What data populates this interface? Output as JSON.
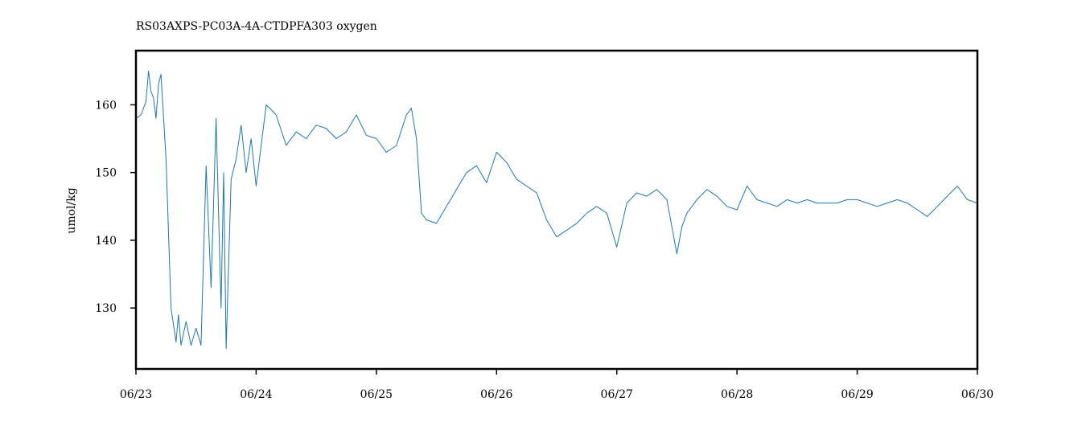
{
  "chart_data": {
    "type": "line",
    "title": "RS03AXPS-PC03A-4A-CTDPFA303 oxygen",
    "xlabel": "",
    "ylabel": "umol/kg",
    "xlim": [
      "06/23",
      "06/30"
    ],
    "ylim": [
      121,
      168
    ],
    "x_ticks": [
      "06/23",
      "06/24",
      "06/25",
      "06/26",
      "06/27",
      "06/28",
      "06/29",
      "06/30"
    ],
    "y_ticks": [
      130,
      140,
      150,
      160
    ],
    "grid": false,
    "series_color": "#1f77b4",
    "series": [
      {
        "x": [
          "06/23 00:00",
          "06/23 01:00",
          "06/23 02:00",
          "06/23 02:30",
          "06/23 03:00",
          "06/23 03:30",
          "06/23 04:00",
          "06/23 04:30",
          "06/23 05:00",
          "06/23 06:00",
          "06/23 07:00",
          "06/23 08:00",
          "06/23 08:30",
          "06/23 09:00",
          "06/23 10:00",
          "06/23 11:00",
          "06/23 12:00",
          "06/23 13:00",
          "06/23 14:00",
          "06/23 15:00",
          "06/23 16:00",
          "06/23 17:00",
          "06/23 17:30",
          "06/23 18:00",
          "06/23 19:00",
          "06/23 20:00",
          "06/23 21:00",
          "06/23 22:00",
          "06/23 23:00",
          "06/24 00:00",
          "06/24 02:00",
          "06/24 04:00",
          "06/24 06:00",
          "06/24 08:00",
          "06/24 10:00",
          "06/24 12:00",
          "06/24 14:00",
          "06/24 16:00",
          "06/24 18:00",
          "06/24 20:00",
          "06/24 22:00",
          "06/25 00:00",
          "06/25 02:00",
          "06/25 04:00",
          "06/25 06:00",
          "06/25 07:00",
          "06/25 08:00",
          "06/25 09:00",
          "06/25 10:00",
          "06/25 12:00",
          "06/25 14:00",
          "06/25 16:00",
          "06/25 18:00",
          "06/25 20:00",
          "06/25 22:00",
          "06/26 00:00",
          "06/26 02:00",
          "06/26 04:00",
          "06/26 06:00",
          "06/26 08:00",
          "06/26 10:00",
          "06/26 12:00",
          "06/26 14:00",
          "06/26 16:00",
          "06/26 18:00",
          "06/26 20:00",
          "06/26 22:00",
          "06/27 00:00",
          "06/27 02:00",
          "06/27 04:00",
          "06/27 06:00",
          "06/27 08:00",
          "06/27 10:00",
          "06/27 12:00",
          "06/27 13:00",
          "06/27 14:00",
          "06/27 16:00",
          "06/27 18:00",
          "06/27 20:00",
          "06/27 22:00",
          "06/28 00:00",
          "06/28 02:00",
          "06/28 04:00",
          "06/28 06:00",
          "06/28 08:00",
          "06/28 10:00",
          "06/28 12:00",
          "06/28 14:00",
          "06/28 16:00",
          "06/28 18:00",
          "06/28 20:00",
          "06/28 22:00",
          "06/29 00:00",
          "06/29 02:00",
          "06/29 04:00",
          "06/29 06:00",
          "06/29 08:00",
          "06/29 10:00",
          "06/29 12:00",
          "06/29 14:00",
          "06/29 16:00",
          "06/29 18:00",
          "06/29 20:00",
          "06/29 22:00",
          "06/30 00:00"
        ],
        "values": [
          158,
          158.5,
          160.5,
          165,
          162,
          161,
          158,
          163,
          164.5,
          152,
          130,
          125,
          129,
          124.5,
          128,
          124.5,
          127,
          124.5,
          151,
          133,
          158,
          130,
          150,
          124,
          149,
          152,
          157,
          150,
          155,
          148,
          160,
          158.5,
          154,
          156,
          155,
          157,
          156.5,
          155,
          156,
          158.5,
          155.5,
          155,
          153,
          154,
          158.5,
          159.5,
          155,
          144,
          143,
          142.5,
          145,
          147.5,
          150,
          151,
          148.5,
          153,
          151.5,
          149,
          148,
          147,
          143,
          140.5,
          141.5,
          142.5,
          144,
          145,
          144,
          139,
          145.5,
          147,
          146.5,
          147.5,
          146,
          138,
          142,
          144,
          146,
          147.5,
          146.5,
          145,
          144.5,
          148,
          146,
          145.5,
          145,
          146,
          145.5,
          146,
          145.5,
          145.5,
          145.5,
          146,
          146,
          145.5,
          145,
          145.5,
          146,
          145.5,
          144.5,
          143.5,
          145,
          146.5,
          148,
          146,
          145.5
        ]
      }
    ]
  }
}
